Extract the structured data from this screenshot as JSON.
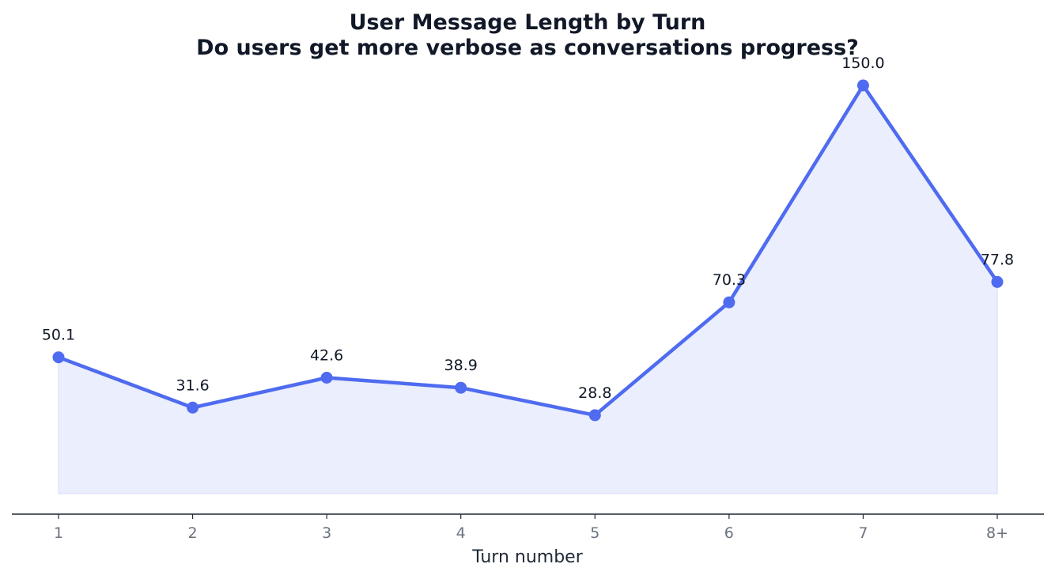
{
  "chart_data": {
    "type": "line",
    "title": "User Message Length by Turn",
    "subtitle": "Do users get more verbose as conversations progress?",
    "xlabel": "Turn number",
    "ylabel": "",
    "categories": [
      "1",
      "2",
      "3",
      "4",
      "5",
      "6",
      "7",
      "8+"
    ],
    "values": [
      50.1,
      31.6,
      42.6,
      38.9,
      28.8,
      70.3,
      150.0,
      77.8
    ],
    "data_labels": [
      "50.1",
      "31.6",
      "42.6",
      "38.9",
      "28.8",
      "70.3",
      "150.0",
      "77.8"
    ],
    "ylim": [
      0,
      150
    ],
    "grid": false,
    "show_y_axis": false,
    "area_fill": true,
    "colors": {
      "line": "#4f6bf0",
      "marker": "#4f6bf0",
      "area": "#eaeefd",
      "axis": "#1f2937"
    }
  }
}
